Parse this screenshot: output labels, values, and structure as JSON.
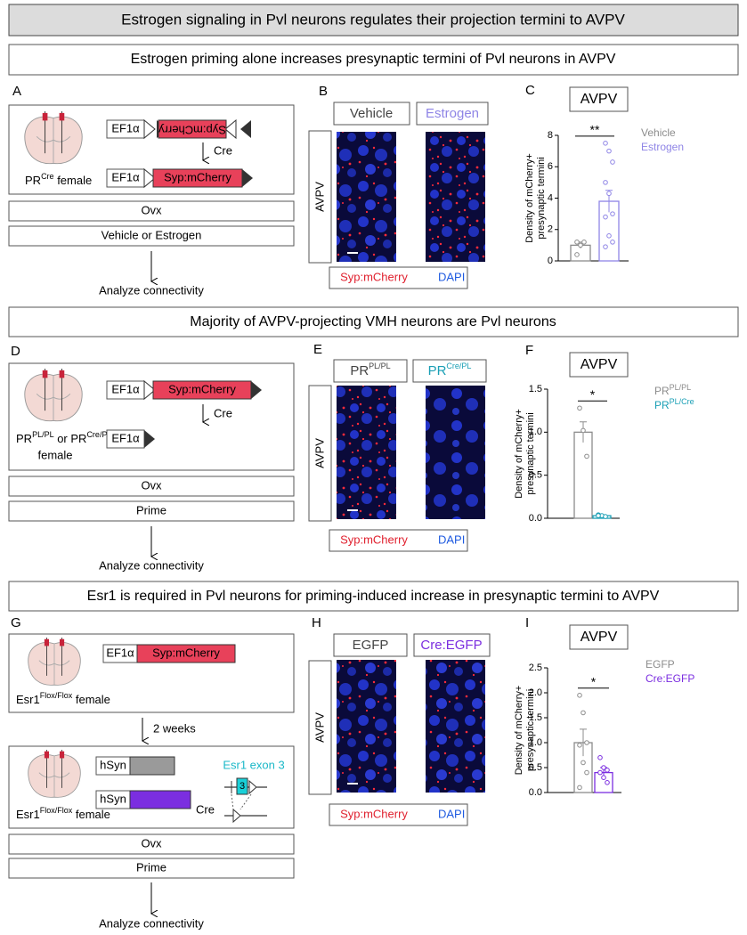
{
  "figure": {
    "header": {
      "title": "Estrogen signaling in Pvl neurons regulates their projection termini to AVPV"
    },
    "sections": [
      {
        "title": "Estrogen priming alone increases presynaptic termini of Pvl neurons in AVPV",
        "schematic": {
          "label": "A",
          "constructs": [
            "EF1α",
            "Syp:mCherry",
            "Cre",
            "EF1α",
            "Syp:mCherry"
          ],
          "mouse": [
            "PR",
            "Cre",
            " female"
          ],
          "steps": [
            "Ovx",
            "Vehicle or Estrogen"
          ],
          "outcome": "Analyze connectivity"
        },
        "images": {
          "label": "B",
          "groups": [
            "Vehicle",
            "Estrogen"
          ],
          "region": "AVPV",
          "stains": [
            "Syp:mCherry",
            "DAPI"
          ]
        }
      },
      {
        "title": "Majority of AVPV-projecting VMH neurons are Pvl neurons",
        "schematic": {
          "label": "D",
          "constructs": [
            "EF1α",
            "Syp:mCherry",
            "Cre",
            "EF1α"
          ],
          "mouse": [
            "PR",
            "PL/PL",
            " or PR",
            "Cre/PL",
            "female"
          ],
          "steps": [
            "Ovx",
            "Prime"
          ],
          "outcome": "Analyze connectivity"
        },
        "images": {
          "label": "E",
          "groups": [
            [
              "PR",
              "PL/PL"
            ],
            [
              "PR",
              "Cre/PL"
            ]
          ],
          "region": "AVPV",
          "stains": [
            "Syp:mCherry",
            "DAPI"
          ]
        }
      },
      {
        "title": "Esr1 is required in Pvl neurons for priming-induced increase in presynaptic termini to AVPV",
        "schematic": {
          "label": "G",
          "constructs": [
            "EF1α",
            "Syp:mCherry"
          ],
          "mouse": [
            "Esr1",
            "Flox/Flox",
            " female"
          ],
          "delay": "2 weeks",
          "constructs2": [
            "hSyn",
            "hSyn",
            "Cre",
            "Esr1 exon 3",
            "3"
          ],
          "mouse2": [
            "Esr1",
            "Flox/Flox",
            " female"
          ],
          "steps": [
            "Ovx",
            "Prime"
          ],
          "outcome": "Analyze connectivity"
        },
        "images": {
          "label": "H",
          "groups": [
            "EGFP",
            "Cre:EGFP"
          ],
          "region": "AVPV",
          "stains": [
            "Syp:mCherry",
            "DAPI"
          ]
        }
      }
    ]
  },
  "chart_data": [
    {
      "type": "bar",
      "label": "C",
      "title": "AVPV",
      "y_label": [
        "Density of mCherry+",
        "presynaptic termini"
      ],
      "ylim": [
        0,
        8
      ],
      "yticks": [
        0,
        2,
        4,
        6,
        8
      ],
      "significance": "**",
      "series": [
        {
          "name": "Vehicle",
          "color": "#8c8c8c",
          "values": [
            1.0
          ],
          "errors": [
            0.2
          ],
          "points": [
            0.4,
            1.0,
            1.2,
            1.2
          ]
        },
        {
          "name": "Estrogen",
          "color": "#8f85e6",
          "values": [
            3.8
          ],
          "errors": [
            0.7
          ],
          "points": [
            7.5,
            7.0,
            6.3,
            5.0,
            4.3,
            3.0,
            2.8,
            1.6,
            1.2,
            0.9
          ]
        }
      ]
    },
    {
      "type": "bar",
      "label": "F",
      "title": "AVPV",
      "y_label": [
        "Density of mCherry+",
        "presynaptic termini"
      ],
      "ylim": [
        0,
        1.5
      ],
      "yticks": [
        {
          "value": 0,
          "label": "0.0"
        },
        0.5,
        {
          "value": 1,
          "label": "1.0"
        },
        1.5
      ],
      "significance": "*",
      "series": [
        {
          "name": "PR",
          "name_sup": "PL/PL",
          "color": "#8c8c8c",
          "values": [
            1.0
          ],
          "errors": [
            0.12
          ],
          "points": [
            1.28,
            1.02,
            0.72
          ]
        },
        {
          "name": "PR",
          "name_sup": "PL/Cre",
          "color": "#1a9fb5",
          "values": [
            0.03
          ],
          "errors": [
            0.01
          ],
          "points": [
            0.04,
            0.03,
            0.02,
            0.03
          ]
        }
      ]
    },
    {
      "type": "bar",
      "label": "I",
      "title": "AVPV",
      "y_label": [
        "Density of mCherry+",
        "presynaptic termini"
      ],
      "ylim": [
        0,
        2.5
      ],
      "yticks": [
        {
          "value": 0,
          "label": "0.0"
        },
        0.5,
        {
          "value": 1,
          "label": "1.0"
        },
        1.5,
        {
          "value": 2,
          "label": "2.0"
        },
        2.5
      ],
      "significance": "*",
      "series": [
        {
          "name": "EGFP",
          "color": "#8c8c8c",
          "values": [
            1.0
          ],
          "errors": [
            0.27
          ],
          "points": [
            1.95,
            1.6,
            1.0,
            0.95,
            0.6,
            0.4,
            0.1
          ]
        },
        {
          "name": "Cre:EGFP",
          "color": "#7b2ee0",
          "values": [
            0.4
          ],
          "errors": [
            0.1
          ],
          "points": [
            0.7,
            0.5,
            0.45,
            0.4,
            0.3,
            0.2
          ]
        }
      ]
    }
  ]
}
